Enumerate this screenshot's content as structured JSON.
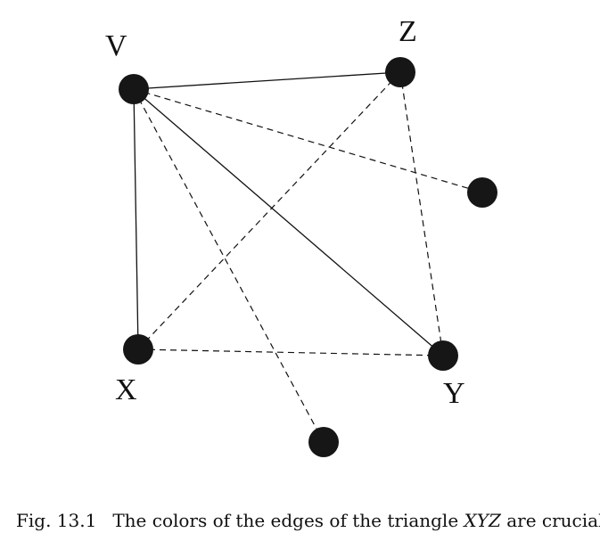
{
  "diagram": {
    "vertices": [
      {
        "id": "V",
        "label": "V"
      },
      {
        "id": "Z",
        "label": "Z"
      },
      {
        "id": "X",
        "label": "X"
      },
      {
        "id": "Y",
        "label": "Y"
      },
      {
        "id": "P1",
        "label": ""
      },
      {
        "id": "P2",
        "label": ""
      }
    ],
    "edges": [
      {
        "from": "V",
        "to": "Z",
        "style": "solid"
      },
      {
        "from": "V",
        "to": "X",
        "style": "solid"
      },
      {
        "from": "V",
        "to": "Y",
        "style": "solid"
      },
      {
        "from": "V",
        "to": "P1",
        "style": "dashed"
      },
      {
        "from": "V",
        "to": "P2",
        "style": "dashed"
      },
      {
        "from": "X",
        "to": "Z",
        "style": "dashed"
      },
      {
        "from": "X",
        "to": "Y",
        "style": "dashed"
      },
      {
        "from": "Z",
        "to": "Y",
        "style": "dashed"
      }
    ]
  },
  "caption": {
    "figure_number": "Fig. 13.1",
    "text_before": "The colors of the edges of the triangle ",
    "math": "XYZ",
    "text_after": " are crucial."
  }
}
